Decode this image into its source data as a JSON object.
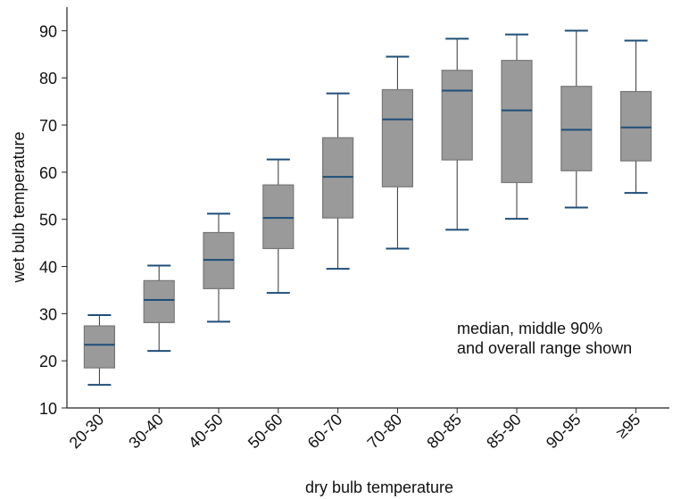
{
  "chart_data": {
    "type": "box",
    "xlabel": "dry bulb temperature",
    "ylabel": "wet bulb temperature",
    "annotation": [
      "median, middle 90%",
      "and overall range shown"
    ],
    "categories": [
      "20-30",
      "30-40",
      "40-50",
      "50-60",
      "60-70",
      "70-80",
      "80-85",
      "85-90",
      "90-95",
      "≥95"
    ],
    "whisker_low": [
      14.9,
      22.1,
      28.3,
      34.4,
      39.5,
      43.8,
      47.8,
      50.1,
      52.5,
      55.6
    ],
    "q_low": [
      18.5,
      28.1,
      35.3,
      43.8,
      50.3,
      56.9,
      62.6,
      57.8,
      60.3,
      62.4
    ],
    "median": [
      23.4,
      32.9,
      41.4,
      50.3,
      59.0,
      71.2,
      77.3,
      73.1,
      69.0,
      69.5
    ],
    "q_high": [
      27.4,
      37.0,
      47.2,
      57.3,
      67.3,
      77.5,
      81.6,
      83.7,
      78.2,
      77.1
    ],
    "whisker_high": [
      29.7,
      40.2,
      51.2,
      62.7,
      76.7,
      84.5,
      88.3,
      89.2,
      90,
      87.9
    ],
    "box_color": "#9a9a9a",
    "median_color": "#1f4e79",
    "ylim": [
      10,
      95
    ],
    "yticks": [
      10,
      20,
      30,
      40,
      50,
      60,
      70,
      80,
      90
    ]
  }
}
